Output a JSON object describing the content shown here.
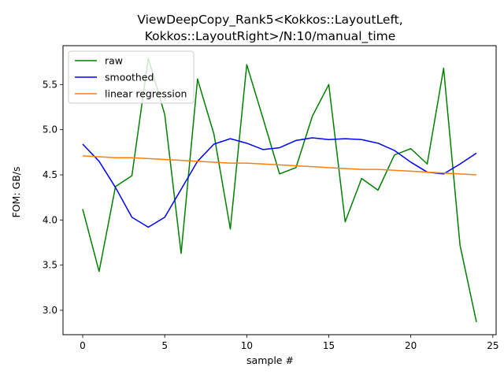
{
  "chart_data": {
    "type": "line",
    "title_lines": [
      "ViewDeepCopy_Rank5<Kokkos::LayoutLeft,",
      "Kokkos::LayoutRight>/N:10/manual_time"
    ],
    "xlabel": "sample #",
    "ylabel": "FOM: GB/s",
    "xlim": [
      -1.2,
      25.2
    ],
    "ylim": [
      2.73,
      5.93
    ],
    "xticks": [
      0,
      5,
      10,
      15,
      20,
      25
    ],
    "yticks": [
      3.0,
      3.5,
      4.0,
      4.5,
      5.0,
      5.5
    ],
    "ytick_labels": [
      "3.0",
      "3.5",
      "4.0",
      "4.5",
      "5.0",
      "5.5"
    ],
    "grid": false,
    "legend_position": "top-left",
    "x": [
      0,
      1,
      2,
      3,
      4,
      5,
      6,
      7,
      8,
      9,
      10,
      11,
      12,
      13,
      14,
      15,
      16,
      17,
      18,
      19,
      20,
      21,
      22,
      23,
      24
    ],
    "series": [
      {
        "name": "raw",
        "color": "#008000",
        "values": [
          4.12,
          3.43,
          4.37,
          4.49,
          5.79,
          5.17,
          3.63,
          5.56,
          4.95,
          3.9,
          5.72,
          5.12,
          4.51,
          4.58,
          5.15,
          5.5,
          3.98,
          4.46,
          4.33,
          4.72,
          4.79,
          4.62,
          5.68,
          3.72,
          2.87
        ]
      },
      {
        "name": "smoothed",
        "color": "#0000ff",
        "values": [
          4.84,
          4.65,
          4.36,
          4.03,
          3.92,
          4.03,
          4.34,
          4.65,
          4.84,
          4.9,
          4.85,
          4.78,
          4.8,
          4.88,
          4.91,
          4.89,
          4.9,
          4.89,
          4.85,
          4.77,
          4.64,
          4.53,
          4.51,
          4.62,
          4.74
        ]
      },
      {
        "name": "linear regression",
        "color": "#ff7f0e",
        "values": [
          4.71,
          4.7,
          4.69,
          4.69,
          4.68,
          4.67,
          4.66,
          4.65,
          4.64,
          4.63,
          4.63,
          4.62,
          4.61,
          4.6,
          4.59,
          4.58,
          4.57,
          4.56,
          4.56,
          4.55,
          4.54,
          4.53,
          4.52,
          4.51,
          4.5
        ]
      }
    ]
  }
}
